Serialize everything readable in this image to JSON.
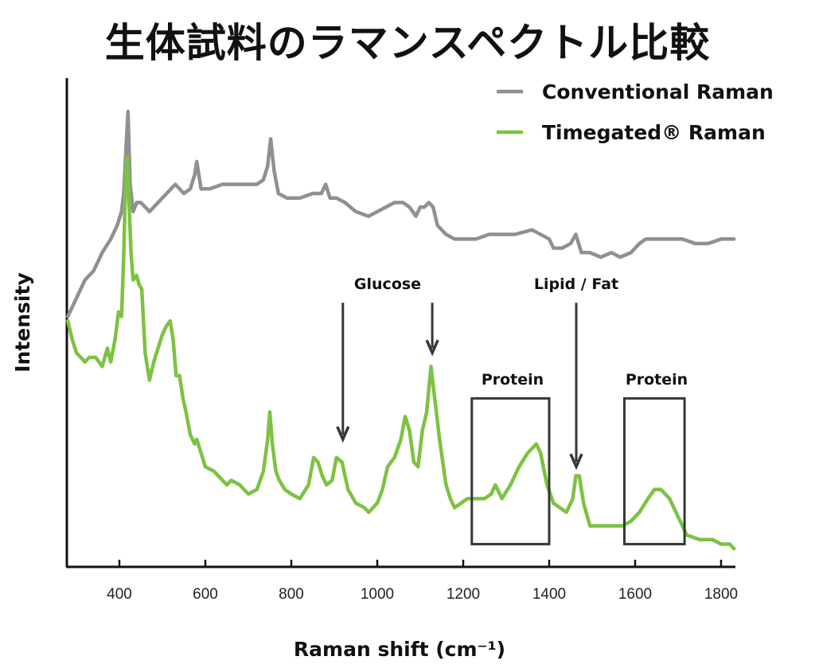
{
  "title": "生体試料のラマンスペクトル比較",
  "chart_data": {
    "type": "line",
    "title": "生体試料のラマンスペクトル比較",
    "xlabel": "Raman shift (cm⁻¹)",
    "ylabel": "Intensity",
    "xlim": [
      278,
      1830
    ],
    "ylim": [
      0,
      100
    ],
    "xticks": [
      400,
      600,
      800,
      1000,
      1200,
      1400,
      1600,
      1800
    ],
    "yticks": [],
    "grid": false,
    "legend_position": "top-right",
    "series": [
      {
        "name": "Conventional Raman",
        "color": "#909094",
        "x": [
          280,
          300,
          320,
          340,
          360,
          380,
          395,
          405,
          410,
          415,
          420,
          425,
          432,
          440,
          450,
          460,
          470,
          490,
          510,
          530,
          550,
          565,
          575,
          580,
          590,
          610,
          640,
          670,
          700,
          720,
          735,
          745,
          752,
          760,
          770,
          790,
          820,
          850,
          870,
          880,
          890,
          905,
          925,
          950,
          980,
          1000,
          1020,
          1040,
          1060,
          1075,
          1090,
          1100,
          1110,
          1120,
          1130,
          1140,
          1160,
          1180,
          1200,
          1230,
          1260,
          1290,
          1320,
          1360,
          1400,
          1410,
          1430,
          1450,
          1462,
          1475,
          1495,
          1520,
          1545,
          1565,
          1590,
          1610,
          1625,
          1650,
          1680,
          1710,
          1740,
          1770,
          1800,
          1820,
          1830
        ],
        "y": [
          55,
          59,
          63,
          65,
          69,
          72,
          75,
          78,
          82,
          91,
          100,
          84,
          78,
          80,
          80,
          79,
          78,
          80,
          82,
          84,
          82,
          83,
          86,
          89,
          83,
          83,
          84,
          84,
          84,
          84,
          85,
          88,
          94,
          87,
          82,
          81,
          81,
          82,
          82,
          84,
          81,
          81,
          80,
          78,
          77,
          78,
          79,
          80,
          80,
          79,
          77,
          79,
          79,
          80,
          79,
          75,
          73,
          72,
          72,
          72,
          73,
          73,
          73,
          74,
          72,
          70,
          70,
          71,
          73,
          69,
          69,
          68,
          69,
          68,
          69,
          71,
          72,
          72,
          72,
          72,
          71,
          71,
          72,
          72,
          72
        ]
      },
      {
        "name": "Timegated® Raman",
        "color": "#7dc242",
        "x": [
          280,
          290,
          300,
          310,
          320,
          330,
          345,
          360,
          372,
          380,
          390,
          398,
          405,
          410,
          415,
          418,
          422,
          427,
          432,
          440,
          446,
          452,
          460,
          470,
          480,
          490,
          500,
          510,
          518,
          525,
          532,
          540,
          548,
          555,
          565,
          575,
          580,
          590,
          600,
          620,
          640,
          650,
          660,
          680,
          700,
          720,
          735,
          745,
          750,
          756,
          764,
          772,
          785,
          800,
          820,
          840,
          852,
          862,
          872,
          882,
          895,
          905,
          918,
          932,
          950,
          970,
          980,
          1000,
          1012,
          1024,
          1040,
          1055,
          1065,
          1075,
          1085,
          1095,
          1105,
          1115,
          1125,
          1135,
          1145,
          1160,
          1170,
          1180,
          1195,
          1210,
          1230,
          1250,
          1265,
          1275,
          1290,
          1310,
          1330,
          1350,
          1370,
          1380,
          1395,
          1410,
          1425,
          1440,
          1455,
          1462,
          1470,
          1480,
          1495,
          1520,
          1545,
          1570,
          1590,
          1610,
          1630,
          1645,
          1660,
          1680,
          1700,
          1720,
          1750,
          1780,
          1800,
          1820,
          1830
        ],
        "y": [
          54,
          50,
          47,
          46,
          45,
          46,
          46,
          44,
          48,
          45,
          50,
          56,
          55,
          68,
          87,
          90,
          81,
          69,
          63,
          64,
          62,
          61,
          47,
          41,
          45,
          48,
          51,
          53,
          54,
          50,
          42,
          42,
          37,
          34,
          29,
          27,
          28,
          25,
          22,
          21,
          19,
          18,
          19,
          18,
          16,
          17,
          21,
          28,
          34,
          27,
          21,
          19,
          17,
          16,
          15,
          18,
          24,
          23,
          20,
          18,
          19,
          24,
          23,
          17,
          14,
          13,
          12,
          14,
          17,
          22,
          24,
          28,
          33,
          30,
          23,
          22,
          30,
          34,
          44,
          36,
          28,
          18,
          15,
          13,
          14,
          15,
          15,
          15,
          16,
          18,
          15,
          18,
          22,
          25,
          27,
          25,
          18,
          14,
          13,
          12,
          15,
          20,
          20,
          14,
          9,
          9,
          9,
          9,
          10,
          12,
          15,
          17,
          17,
          15,
          11,
          7,
          6,
          6,
          5,
          5,
          4
        ]
      }
    ],
    "annotations": [
      {
        "type": "arrow",
        "label": "Glucose",
        "x": 920,
        "from_y": 58,
        "to_y": 28
      },
      {
        "type": "arrow",
        "label": "",
        "x": 1128,
        "from_y": 58,
        "to_y": 47
      },
      {
        "type": "arrow",
        "label": "Lipid / Fat",
        "x": 1463,
        "from_y": 58,
        "to_y": 22
      },
      {
        "type": "box",
        "label": "Protein",
        "x_range": [
          1220,
          1400
        ],
        "y_range": [
          5,
          37
        ]
      },
      {
        "type": "box",
        "label": "Protein",
        "x_range": [
          1575,
          1715
        ],
        "y_range": [
          5,
          37
        ]
      }
    ]
  },
  "legend": [
    {
      "label": "Conventional Raman",
      "color": "#909094"
    },
    {
      "label": "Timegated® Raman",
      "color": "#7dc242"
    }
  ],
  "axes": {
    "x_title": "Raman shift (cm⁻¹)",
    "y_title": "Intensity",
    "x_tick_labels": [
      "400",
      "600",
      "800",
      "1000",
      "1200",
      "1400",
      "1600",
      "1800"
    ]
  },
  "annotation_labels": {
    "glucose": "Glucose",
    "lipid": "Lipid / Fat",
    "protein_1": "Protein",
    "protein_2": "Protein"
  },
  "colors": {
    "conventional": "#909094",
    "timegated": "#7dc242",
    "annotation": "#333833",
    "axis": "#111111"
  }
}
